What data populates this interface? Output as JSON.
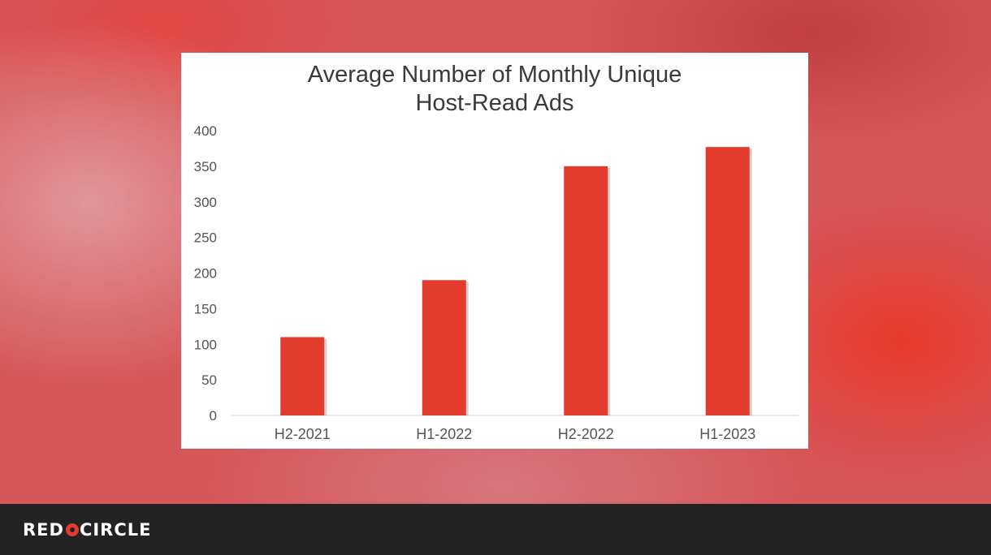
{
  "chart_data": {
    "type": "bar",
    "title": "Average Number of Monthly Unique\nHost-Read Ads",
    "categories": [
      "H2-2021",
      "H1-2022",
      "H2-2022",
      "H1-2023"
    ],
    "values": [
      110,
      190,
      350,
      377
    ],
    "ylim": [
      0,
      400
    ],
    "yticks": [
      0,
      50,
      100,
      150,
      200,
      250,
      300,
      350,
      400
    ],
    "xlabel": "",
    "ylabel": "",
    "grid": false,
    "legend": "none",
    "bar_color": "#e33b2e",
    "axis_color": "#d0d0d0",
    "text_color": "#555555"
  },
  "brand": {
    "left": "RED",
    "right": "CIRCLE",
    "mark_color": "#e43a2f"
  },
  "footer_color": "#232323"
}
